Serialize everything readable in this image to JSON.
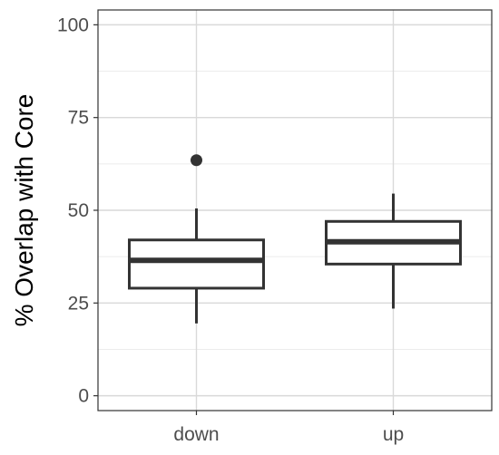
{
  "chart_data": {
    "type": "box",
    "ylabel": "% Overlap with Core",
    "xlabel": "",
    "ylim": [
      -4,
      104
    ],
    "y_ticks": [
      0,
      25,
      50,
      75,
      100
    ],
    "y_tick_labels": [
      "0",
      "25",
      "50",
      "75",
      "100"
    ],
    "categories": [
      "down",
      "up"
    ],
    "boxes": [
      {
        "category": "down",
        "whisker_low": 19.5,
        "q1": 29,
        "median": 36.5,
        "q3": 42,
        "whisker_high": 50.5,
        "outliers": [
          63.5
        ]
      },
      {
        "category": "up",
        "whisker_low": 23.5,
        "q1": 35.5,
        "median": 41.5,
        "q3": 47,
        "whisker_high": 54.5,
        "outliers": []
      }
    ],
    "grid": true,
    "colors": {
      "panel_border": "#333333",
      "grid_major": "#d9d9d9",
      "grid_minor": "#ececec",
      "box_stroke": "#333333",
      "box_fill": "#ffffff",
      "tick_text": "#4d4d4d",
      "title_text": "#000000"
    }
  }
}
